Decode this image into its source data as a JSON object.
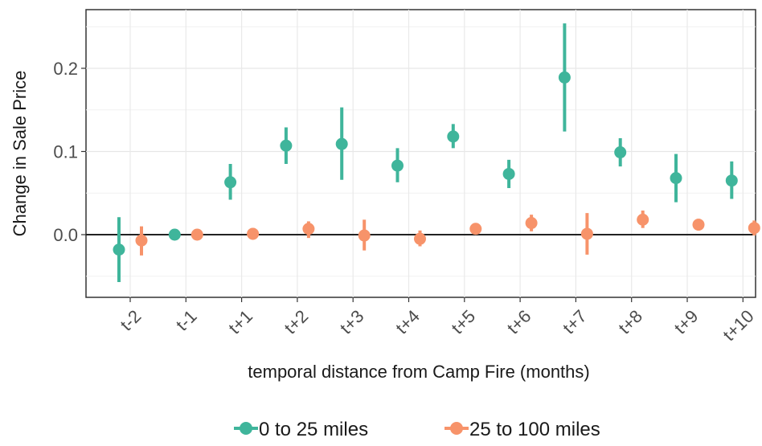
{
  "chart_data": {
    "type": "scatter",
    "subtype": "point-range",
    "title": "",
    "xlabel": "temporal distance from Camp Fire (months)",
    "ylabel": "Change in Sale Price",
    "categories": [
      "t-2",
      "t-1",
      "t+1",
      "t+2",
      "t+3",
      "t+4",
      "t+5",
      "t+6",
      "t+7",
      "t+8",
      "t+9",
      "t+10"
    ],
    "y_ticks": [
      "0.0",
      "0.1",
      "0.2"
    ],
    "ylim": [
      -0.07,
      0.27
    ],
    "grid": true,
    "reference_line_y": 0,
    "legend_position": "bottom",
    "series": [
      {
        "name": "0 to 25 miles",
        "color": "#3fb59b",
        "estimate": [
          -0.018,
          0.0,
          0.063,
          0.107,
          0.109,
          0.083,
          0.118,
          0.073,
          0.189,
          0.099,
          0.068,
          0.065
        ],
        "lower": [
          -0.057,
          0.0,
          0.042,
          0.085,
          0.066,
          0.063,
          0.104,
          0.056,
          0.124,
          0.082,
          0.039,
          0.043
        ],
        "upper": [
          0.021,
          0.0,
          0.085,
          0.129,
          0.153,
          0.104,
          0.133,
          0.09,
          0.254,
          0.116,
          0.097,
          0.088
        ]
      },
      {
        "name": "25 to 100 miles",
        "color": "#f7936a",
        "estimate": [
          -0.007,
          0.0,
          0.001,
          0.007,
          -0.001,
          -0.005,
          0.007,
          0.014,
          0.001,
          0.018,
          0.012,
          0.008
        ],
        "lower": [
          -0.025,
          0.0,
          -0.006,
          -0.004,
          -0.019,
          -0.014,
          0.001,
          0.004,
          -0.024,
          0.008,
          0.005,
          -0.001
        ],
        "upper": [
          0.01,
          0.0,
          0.008,
          0.016,
          0.018,
          0.005,
          0.013,
          0.024,
          0.026,
          0.029,
          0.019,
          0.017
        ]
      }
    ]
  }
}
